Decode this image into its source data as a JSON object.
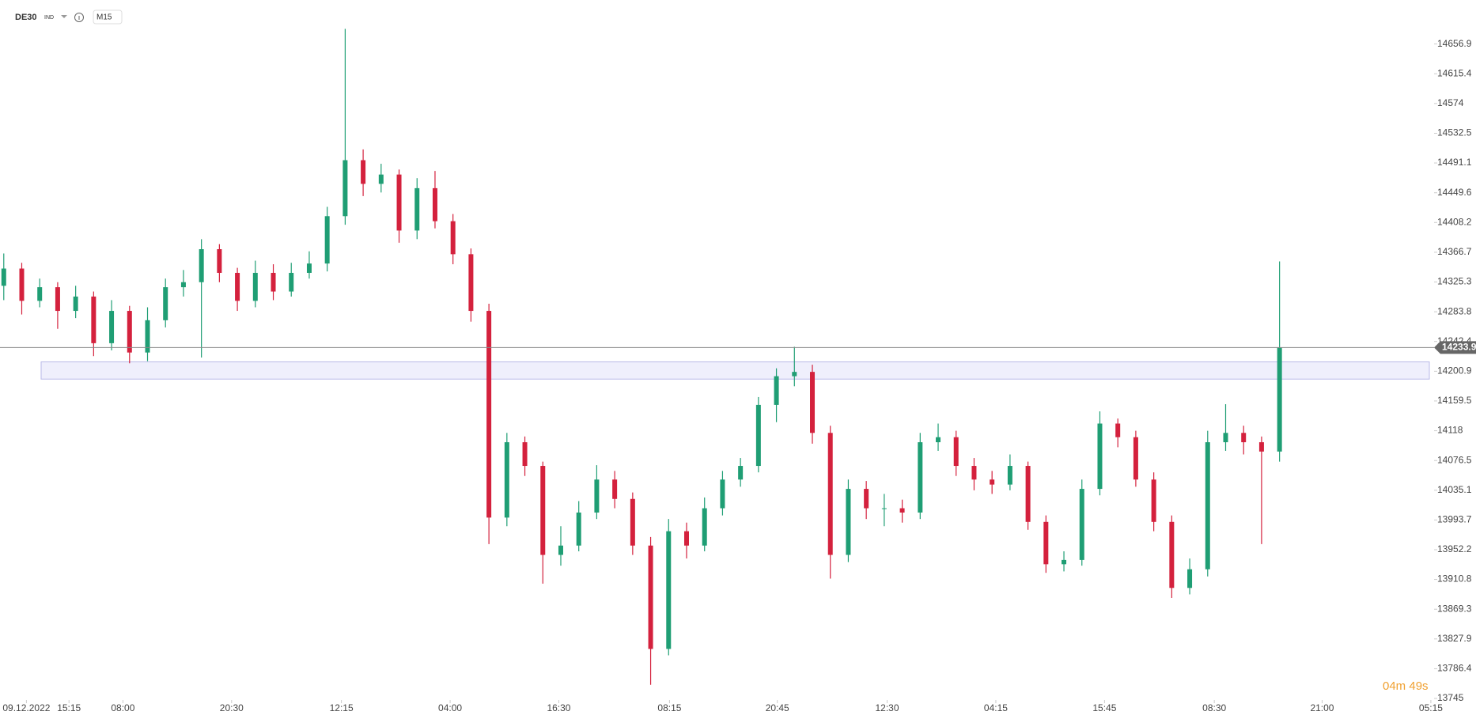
{
  "chart_data": {
    "type": "candlestick",
    "symbol": "DE30",
    "market": "IND",
    "timeframe": "M15",
    "countdown": "04m 49s",
    "last_price": 14233.9,
    "zone": [
      14190,
      14214
    ],
    "up_color": "#1f9e74",
    "down_color": "#d4213d",
    "open": [
      14320,
      14344,
      14299,
      14318,
      14285,
      14305,
      14240,
      14285,
      14227,
      14272,
      14318,
      14325,
      14371,
      14338,
      14299,
      14338,
      14312,
      14338,
      14351,
      14417,
      14495,
      14462,
      14475,
      14397,
      14456,
      14410,
      14364,
      14285,
      13997,
      14102,
      14069,
      13945,
      13958,
      14004,
      14050,
      14023,
      13958,
      13814,
      13978,
      13958,
      14010,
      14050,
      14069,
      14154,
      14194,
      14200,
      14115,
      13945,
      14037,
      14010,
      14010,
      14004,
      14102,
      14109,
      14069,
      14050,
      14043,
      14069,
      13991,
      13932,
      13938,
      14037,
      14128,
      14109,
      14050,
      13991,
      13899,
      13925,
      14102,
      14115,
      14102,
      14089
    ],
    "high": [
      14365,
      14352,
      14330,
      14325,
      14320,
      14312,
      14300,
      14292,
      14290,
      14330,
      14342,
      14385,
      14378,
      14345,
      14355,
      14350,
      14352,
      14368,
      14430,
      14678,
      14510,
      14490,
      14482,
      14470,
      14480,
      14420,
      14372,
      14295,
      14115,
      14110,
      14075,
      13985,
      14020,
      14070,
      14062,
      14032,
      13970,
      13995,
      13990,
      14025,
      14062,
      14080,
      14165,
      14205,
      14235,
      14210,
      14125,
      14050,
      14048,
      14030,
      14022,
      14115,
      14128,
      14118,
      14080,
      14062,
      14085,
      14075,
      14000,
      13950,
      14050,
      14145,
      14135,
      14118,
      14060,
      14000,
      13940,
      14118,
      14155,
      14125,
      14110,
      14354
    ],
    "low": [
      14300,
      14280,
      14290,
      14260,
      14275,
      14222,
      14230,
      14212,
      14215,
      14262,
      14305,
      14220,
      14325,
      14285,
      14290,
      14300,
      14305,
      14330,
      14340,
      14405,
      14445,
      14450,
      14380,
      14385,
      14400,
      14350,
      14270,
      13960,
      13985,
      14055,
      13905,
      13930,
      13950,
      13995,
      14010,
      13945,
      13764,
      13805,
      13940,
      13950,
      14000,
      14040,
      14060,
      14130,
      14180,
      14100,
      13912,
      13935,
      13995,
      13985,
      13990,
      13995,
      14090,
      14055,
      14035,
      14030,
      14035,
      13980,
      13920,
      13922,
      13930,
      14028,
      14095,
      14040,
      13978,
      13885,
      13890,
      13915,
      14090,
      14085,
      13960,
      14075
    ],
    "close": [
      14344,
      14299,
      14318,
      14285,
      14305,
      14240,
      14285,
      14227,
      14272,
      14318,
      14325,
      14371,
      14338,
      14299,
      14338,
      14312,
      14338,
      14351,
      14417,
      14495,
      14462,
      14475,
      14397,
      14456,
      14410,
      14364,
      14285,
      13997,
      14102,
      14069,
      13945,
      13958,
      14004,
      14050,
      14023,
      13958,
      13814,
      13978,
      13958,
      14010,
      14050,
      14069,
      14154,
      14194,
      14200,
      14115,
      13945,
      14037,
      14010,
      14010,
      14004,
      14102,
      14109,
      14069,
      14050,
      14043,
      14069,
      13991,
      13932,
      13938,
      14037,
      14128,
      14109,
      14050,
      13991,
      13899,
      13925,
      14102,
      14115,
      14102,
      14089,
      14233.9
    ],
    "xlim": [
      -0.21,
      79.6
    ],
    "ylim": [
      13745.0,
      14718.2
    ],
    "xticks": [
      {
        "value": 1.26,
        "label": "09.12.2022"
      },
      {
        "value": 3.63,
        "label": "15:15"
      },
      {
        "value": 6.63,
        "label": "08:00"
      },
      {
        "value": 12.68,
        "label": "20:30"
      },
      {
        "value": 18.79,
        "label": "12:15"
      },
      {
        "value": 24.84,
        "label": "04:00"
      },
      {
        "value": 30.89,
        "label": "16:30"
      },
      {
        "value": 37.05,
        "label": "08:15"
      },
      {
        "value": 43.05,
        "label": "20:45"
      },
      {
        "value": 49.16,
        "label": "12:30"
      },
      {
        "value": 55.21,
        "label": "04:15"
      },
      {
        "value": 61.26,
        "label": "15:45"
      },
      {
        "value": 67.37,
        "label": "08:30"
      },
      {
        "value": 73.37,
        "label": "21:00"
      },
      {
        "value": 79.42,
        "label": "05:15"
      }
    ],
    "yticks": [
      14656.9,
      14615.4,
      14574.0,
      14532.5,
      14491.1,
      14449.6,
      14408.2,
      14366.7,
      14325.3,
      14283.8,
      14242.4,
      14200.9,
      14159.5,
      14118.0,
      14076.5,
      14035.1,
      13993.7,
      13952.2,
      13910.8,
      13869.3,
      13827.9,
      13786.4,
      13745.0
    ]
  }
}
